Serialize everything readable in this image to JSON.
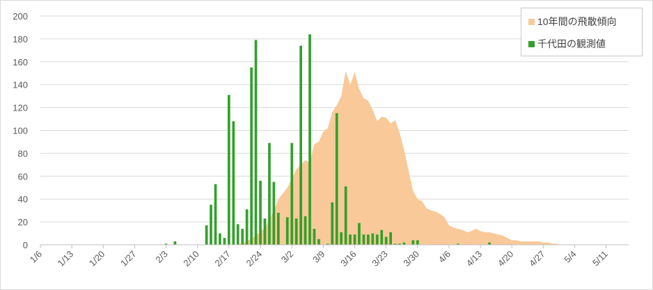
{
  "chart_data": {
    "type": "bar+area",
    "ylim": [
      0,
      200
    ],
    "yticks": [
      0,
      20,
      40,
      60,
      80,
      100,
      120,
      140,
      160,
      180,
      200
    ],
    "date_range": [
      "1/6",
      "5/16"
    ],
    "xtick_labels": [
      "1/6",
      "1/13",
      "1/20",
      "1/27",
      "2/3",
      "2/10",
      "2/17",
      "2/24",
      "3/2",
      "3/9",
      "3/16",
      "3/23",
      "3/30",
      "4/6",
      "4/13",
      "4/20",
      "4/27",
      "5/4",
      "5/11"
    ],
    "legend_position": "top-right",
    "grid": true,
    "series": [
      {
        "name": "10年間の飛散傾向",
        "kind": "area",
        "color": "#f9c999",
        "points": [
          [
            "2/19",
            0
          ],
          [
            "2/21",
            3
          ],
          [
            "2/23",
            8
          ],
          [
            "2/25",
            15
          ],
          [
            "2/26",
            22
          ],
          [
            "2/27",
            30
          ],
          [
            "2/28",
            40
          ],
          [
            "3/1",
            50
          ],
          [
            "3/2",
            58
          ],
          [
            "3/3",
            66
          ],
          [
            "3/4",
            70
          ],
          [
            "3/5",
            74
          ],
          [
            "3/6",
            72
          ],
          [
            "3/7",
            88
          ],
          [
            "3/8",
            90
          ],
          [
            "3/9",
            99
          ],
          [
            "3/10",
            102
          ],
          [
            "3/11",
            116
          ],
          [
            "3/12",
            122
          ],
          [
            "3/13",
            130
          ],
          [
            "3/14",
            152
          ],
          [
            "3/15",
            140
          ],
          [
            "3/16",
            151
          ],
          [
            "3/17",
            136
          ],
          [
            "3/18",
            128
          ],
          [
            "3/19",
            126
          ],
          [
            "3/20",
            118
          ],
          [
            "3/21",
            108
          ],
          [
            "3/22",
            112
          ],
          [
            "3/23",
            111
          ],
          [
            "3/24",
            106
          ],
          [
            "3/25",
            109
          ],
          [
            "3/26",
            98
          ],
          [
            "3/27",
            83
          ],
          [
            "3/28",
            65
          ],
          [
            "3/29",
            47
          ],
          [
            "3/30",
            40
          ],
          [
            "3/31",
            38
          ],
          [
            "4/1",
            32
          ],
          [
            "4/2",
            30
          ],
          [
            "4/3",
            29
          ],
          [
            "4/4",
            27
          ],
          [
            "4/5",
            24
          ],
          [
            "4/6",
            17
          ],
          [
            "4/7",
            15
          ],
          [
            "4/8",
            14
          ],
          [
            "4/9",
            13
          ],
          [
            "4/10",
            11
          ],
          [
            "4/11",
            12
          ],
          [
            "4/12",
            14
          ],
          [
            "4/13",
            12
          ],
          [
            "4/14",
            11
          ],
          [
            "4/15",
            11
          ],
          [
            "4/16",
            10
          ],
          [
            "4/17",
            9
          ],
          [
            "4/18",
            8
          ],
          [
            "4/19",
            6
          ],
          [
            "4/20",
            4
          ],
          [
            "4/21",
            4
          ],
          [
            "4/22",
            3
          ],
          [
            "4/23",
            3
          ],
          [
            "4/24",
            3
          ],
          [
            "4/25",
            3
          ],
          [
            "4/26",
            3
          ],
          [
            "4/27",
            2
          ],
          [
            "4/28",
            2
          ],
          [
            "4/29",
            1
          ],
          [
            "4/30",
            1
          ],
          [
            "5/1",
            0
          ]
        ]
      },
      {
        "name": "千代田の観測値",
        "kind": "bar",
        "color": "#33a02c",
        "points": [
          [
            "2/3",
            1
          ],
          [
            "2/5",
            3
          ],
          [
            "2/12",
            17
          ],
          [
            "2/13",
            35
          ],
          [
            "2/14",
            53
          ],
          [
            "2/15",
            10
          ],
          [
            "2/16",
            6
          ],
          [
            "2/17",
            131
          ],
          [
            "2/18",
            108
          ],
          [
            "2/19",
            18
          ],
          [
            "2/20",
            14
          ],
          [
            "2/21",
            31
          ],
          [
            "2/22",
            155
          ],
          [
            "2/23",
            179
          ],
          [
            "2/24",
            56
          ],
          [
            "2/25",
            23
          ],
          [
            "2/26",
            89
          ],
          [
            "2/27",
            55
          ],
          [
            "2/28",
            28
          ],
          [
            "3/1",
            24
          ],
          [
            "3/2",
            89
          ],
          [
            "3/3",
            23
          ],
          [
            "3/4",
            174
          ],
          [
            "3/5",
            25
          ],
          [
            "3/6",
            184
          ],
          [
            "3/7",
            14
          ],
          [
            "3/8",
            5
          ],
          [
            "3/10",
            1
          ],
          [
            "3/11",
            37
          ],
          [
            "3/12",
            115
          ],
          [
            "3/13",
            11
          ],
          [
            "3/14",
            51
          ],
          [
            "3/15",
            9
          ],
          [
            "3/16",
            9
          ],
          [
            "3/17",
            19
          ],
          [
            "3/18",
            9
          ],
          [
            "3/19",
            9
          ],
          [
            "3/20",
            10
          ],
          [
            "3/21",
            9
          ],
          [
            "3/22",
            13
          ],
          [
            "3/23",
            7
          ],
          [
            "3/24",
            11
          ],
          [
            "3/25",
            1
          ],
          [
            "3/26",
            1
          ],
          [
            "3/27",
            2
          ],
          [
            "3/29",
            4
          ],
          [
            "3/30",
            4
          ],
          [
            "4/8",
            1
          ],
          [
            "4/15",
            2
          ]
        ]
      }
    ]
  }
}
